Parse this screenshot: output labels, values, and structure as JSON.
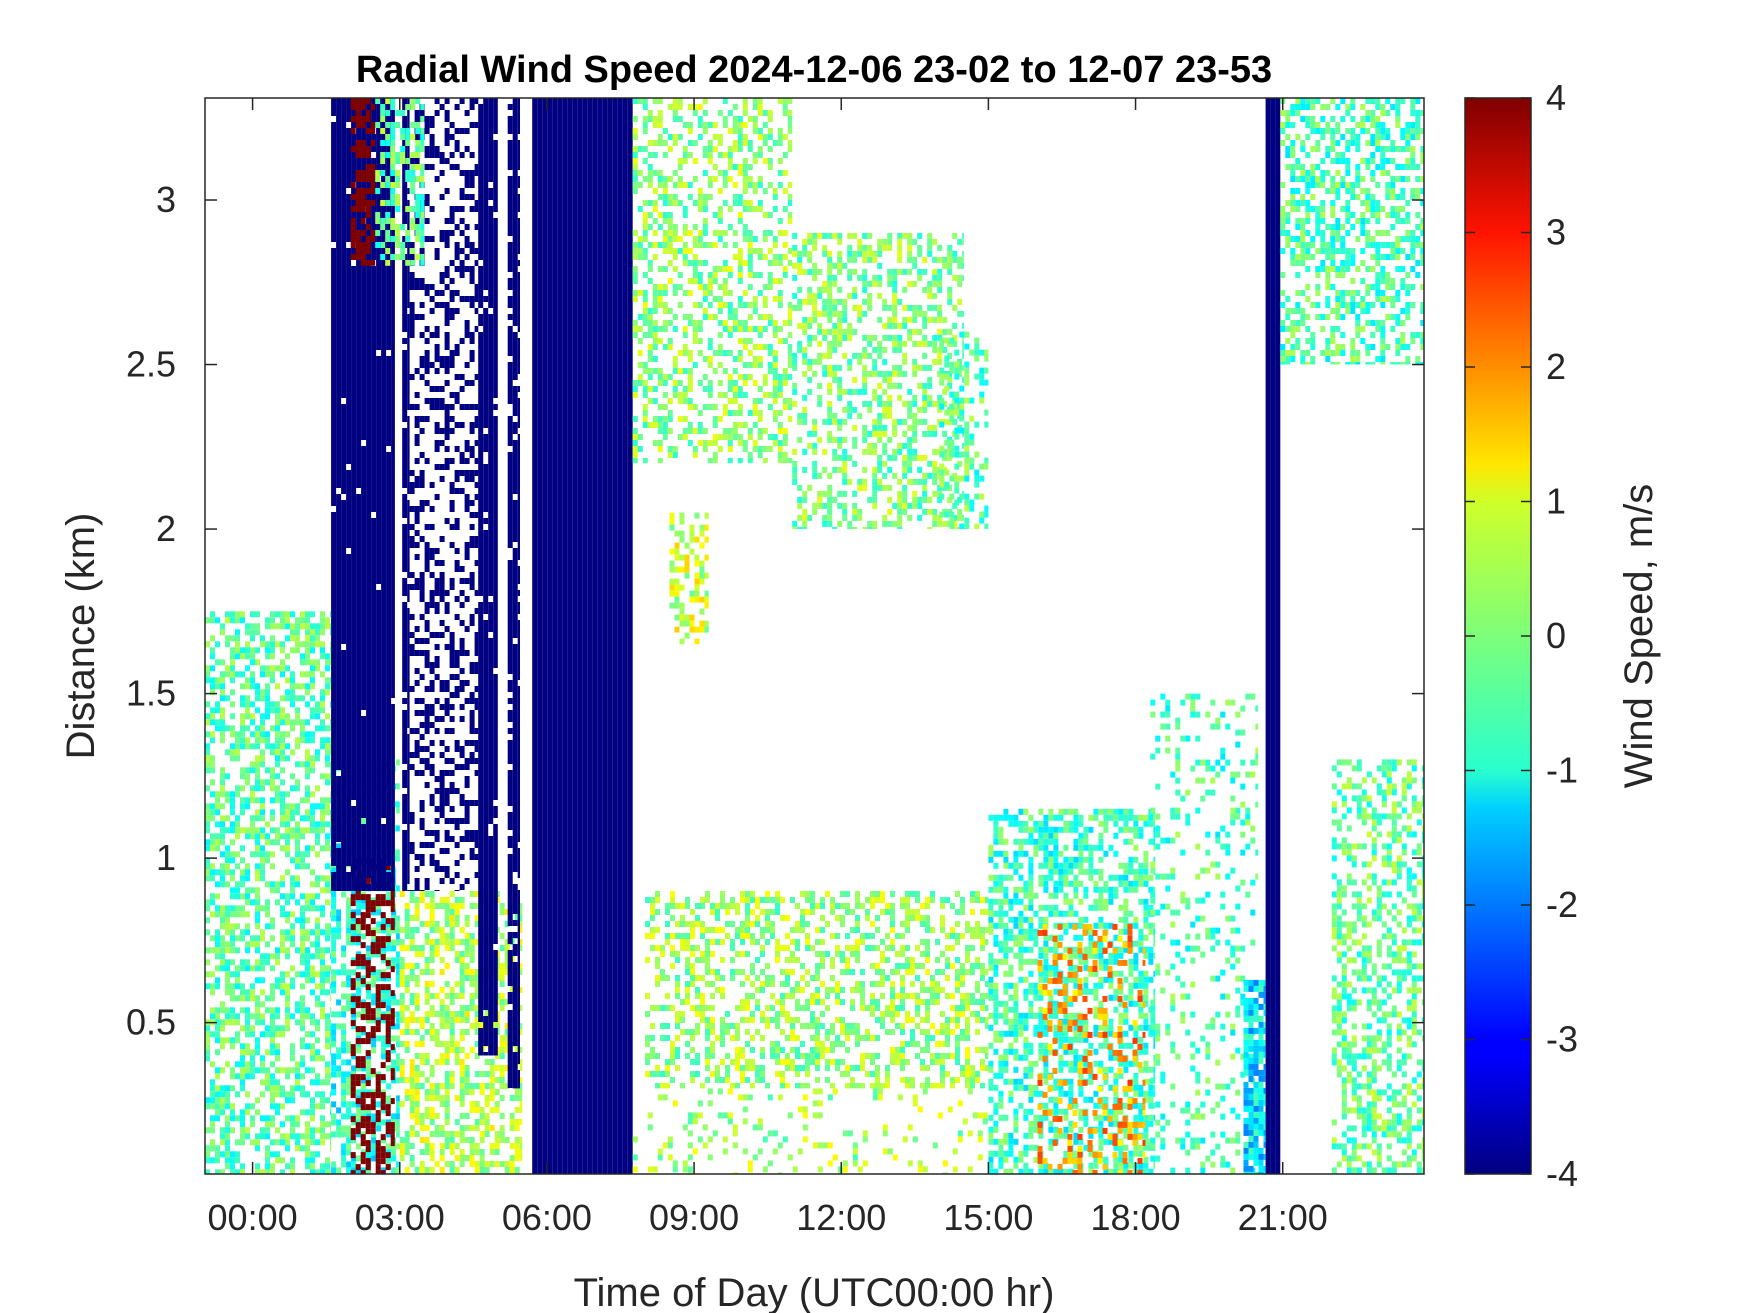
{
  "chart_data": {
    "type": "heatmap",
    "title": "Radial Wind Speed 2024-12-06 23-02 to 12-07 23-53",
    "xlabel": "Time of Day (UTC00:00 hr)",
    "ylabel": "Distance (km)",
    "colorbar_label": "Wind Speed, m/s",
    "colormap": "jet",
    "xlim_hours": [
      -0.97,
      23.88
    ],
    "ylim_km": [
      0.04,
      3.31
    ],
    "clim": [
      -4,
      4
    ],
    "x_ticks": [
      {
        "value": 0,
        "label": "00:00"
      },
      {
        "value": 3,
        "label": "03:00"
      },
      {
        "value": 6,
        "label": "06:00"
      },
      {
        "value": 9,
        "label": "09:00"
      },
      {
        "value": 12,
        "label": "12:00"
      },
      {
        "value": 15,
        "label": "15:00"
      },
      {
        "value": 18,
        "label": "18:00"
      },
      {
        "value": 21,
        "label": "21:00"
      }
    ],
    "y_ticks": [
      {
        "value": 0.5,
        "label": "0.5"
      },
      {
        "value": 1,
        "label": "1"
      },
      {
        "value": 1.5,
        "label": "1.5"
      },
      {
        "value": 2,
        "label": "2"
      },
      {
        "value": 2.5,
        "label": "2.5"
      },
      {
        "value": 3,
        "label": "3"
      }
    ],
    "colorbar_ticks": [
      {
        "value": 4,
        "label": "4"
      },
      {
        "value": 3,
        "label": "3"
      },
      {
        "value": 2,
        "label": "2"
      },
      {
        "value": 1,
        "label": "1"
      },
      {
        "value": 0,
        "label": "0"
      },
      {
        "value": -1,
        "label": "-1"
      },
      {
        "value": -2,
        "label": "-2"
      },
      {
        "value": -3,
        "label": "-3"
      },
      {
        "value": -4,
        "label": "-4"
      }
    ],
    "grid": false,
    "regions": [
      {
        "t0": -0.97,
        "t1": 1.6,
        "d0": 0.04,
        "d1": 1.75,
        "v": -0.3,
        "density": 0.55,
        "ytop_slope": 0
      },
      {
        "t0": 1.6,
        "t1": 3.0,
        "d0": 0.04,
        "d1": 1.3,
        "v": -0.7,
        "density": 0.6
      },
      {
        "t0": 2.0,
        "t1": 2.9,
        "d0": 0.04,
        "d1": 1.0,
        "v": 4.0,
        "density": 0.45
      },
      {
        "t0": 3.0,
        "t1": 5.5,
        "d0": 0.04,
        "d1": 0.9,
        "v": 0.4,
        "density": 0.55
      },
      {
        "t0": 1.6,
        "t1": 2.9,
        "d0": 0.9,
        "d1": 3.31,
        "v": -4.0,
        "density": 0.98
      },
      {
        "t0": 3.05,
        "t1": 3.2,
        "d0": 0.9,
        "d1": 3.31,
        "v": -4.0,
        "density": 0.9
      },
      {
        "t0": 3.2,
        "t1": 4.6,
        "d0": 0.9,
        "d1": 3.31,
        "v": -4.0,
        "density": 0.35
      },
      {
        "t0": 4.6,
        "t1": 5.0,
        "d0": 0.4,
        "d1": 3.31,
        "v": -4.0,
        "density": 0.95
      },
      {
        "t0": 5.2,
        "t1": 5.45,
        "d0": 0.3,
        "d1": 3.31,
        "v": -4.0,
        "density": 0.9
      },
      {
        "t0": 5.7,
        "t1": 7.75,
        "d0": 0.04,
        "d1": 3.31,
        "v": -4.0,
        "density": 1.0
      },
      {
        "t0": 2.0,
        "t1": 2.5,
        "d0": 2.8,
        "d1": 3.31,
        "v": 4.0,
        "density": 0.6
      },
      {
        "t0": 2.5,
        "t1": 3.5,
        "d0": 2.8,
        "d1": 3.31,
        "v": -0.2,
        "density": 0.5
      },
      {
        "t0": 7.75,
        "t1": 11.0,
        "d0": 2.2,
        "d1": 3.31,
        "v": 0.1,
        "density": 0.45
      },
      {
        "t0": 11.0,
        "t1": 14.5,
        "d0": 2.0,
        "d1": 2.9,
        "v": 0.0,
        "density": 0.45
      },
      {
        "t0": 14.0,
        "t1": 15.0,
        "d0": 2.0,
        "d1": 2.6,
        "v": -0.3,
        "density": 0.4
      },
      {
        "t0": 8.5,
        "t1": 9.3,
        "d0": 1.65,
        "d1": 2.05,
        "v": 0.6,
        "density": 0.45
      },
      {
        "t0": 8.0,
        "t1": 15.0,
        "d0": 0.3,
        "d1": 0.9,
        "v": 0.2,
        "density": 0.45
      },
      {
        "t0": 15.0,
        "t1": 18.4,
        "d0": 0.04,
        "d1": 1.15,
        "v": -0.5,
        "density": 0.55
      },
      {
        "t0": 16.0,
        "t1": 18.2,
        "d0": 0.04,
        "d1": 0.8,
        "v": 1.8,
        "density": 0.25
      },
      {
        "t0": 18.3,
        "t1": 20.5,
        "d0": 0.04,
        "d1": 1.5,
        "v": -0.4,
        "density": 0.2
      },
      {
        "t0": 20.2,
        "t1": 20.65,
        "d0": 0.04,
        "d1": 0.63,
        "v": -1.2,
        "density": 0.9
      },
      {
        "t0": 20.65,
        "t1": 20.95,
        "d0": 0.04,
        "d1": 3.31,
        "v": -4.0,
        "density": 1.0
      },
      {
        "t0": 20.95,
        "t1": 23.88,
        "d0": 2.5,
        "d1": 3.31,
        "v": -0.4,
        "density": 0.5
      },
      {
        "t0": 22.0,
        "t1": 23.88,
        "d0": 0.04,
        "d1": 1.3,
        "v": -0.2,
        "density": 0.45
      },
      {
        "t0": 7.75,
        "t1": 15.0,
        "d0": 0.04,
        "d1": 0.3,
        "v": 0.3,
        "density": 0.15
      }
    ]
  }
}
